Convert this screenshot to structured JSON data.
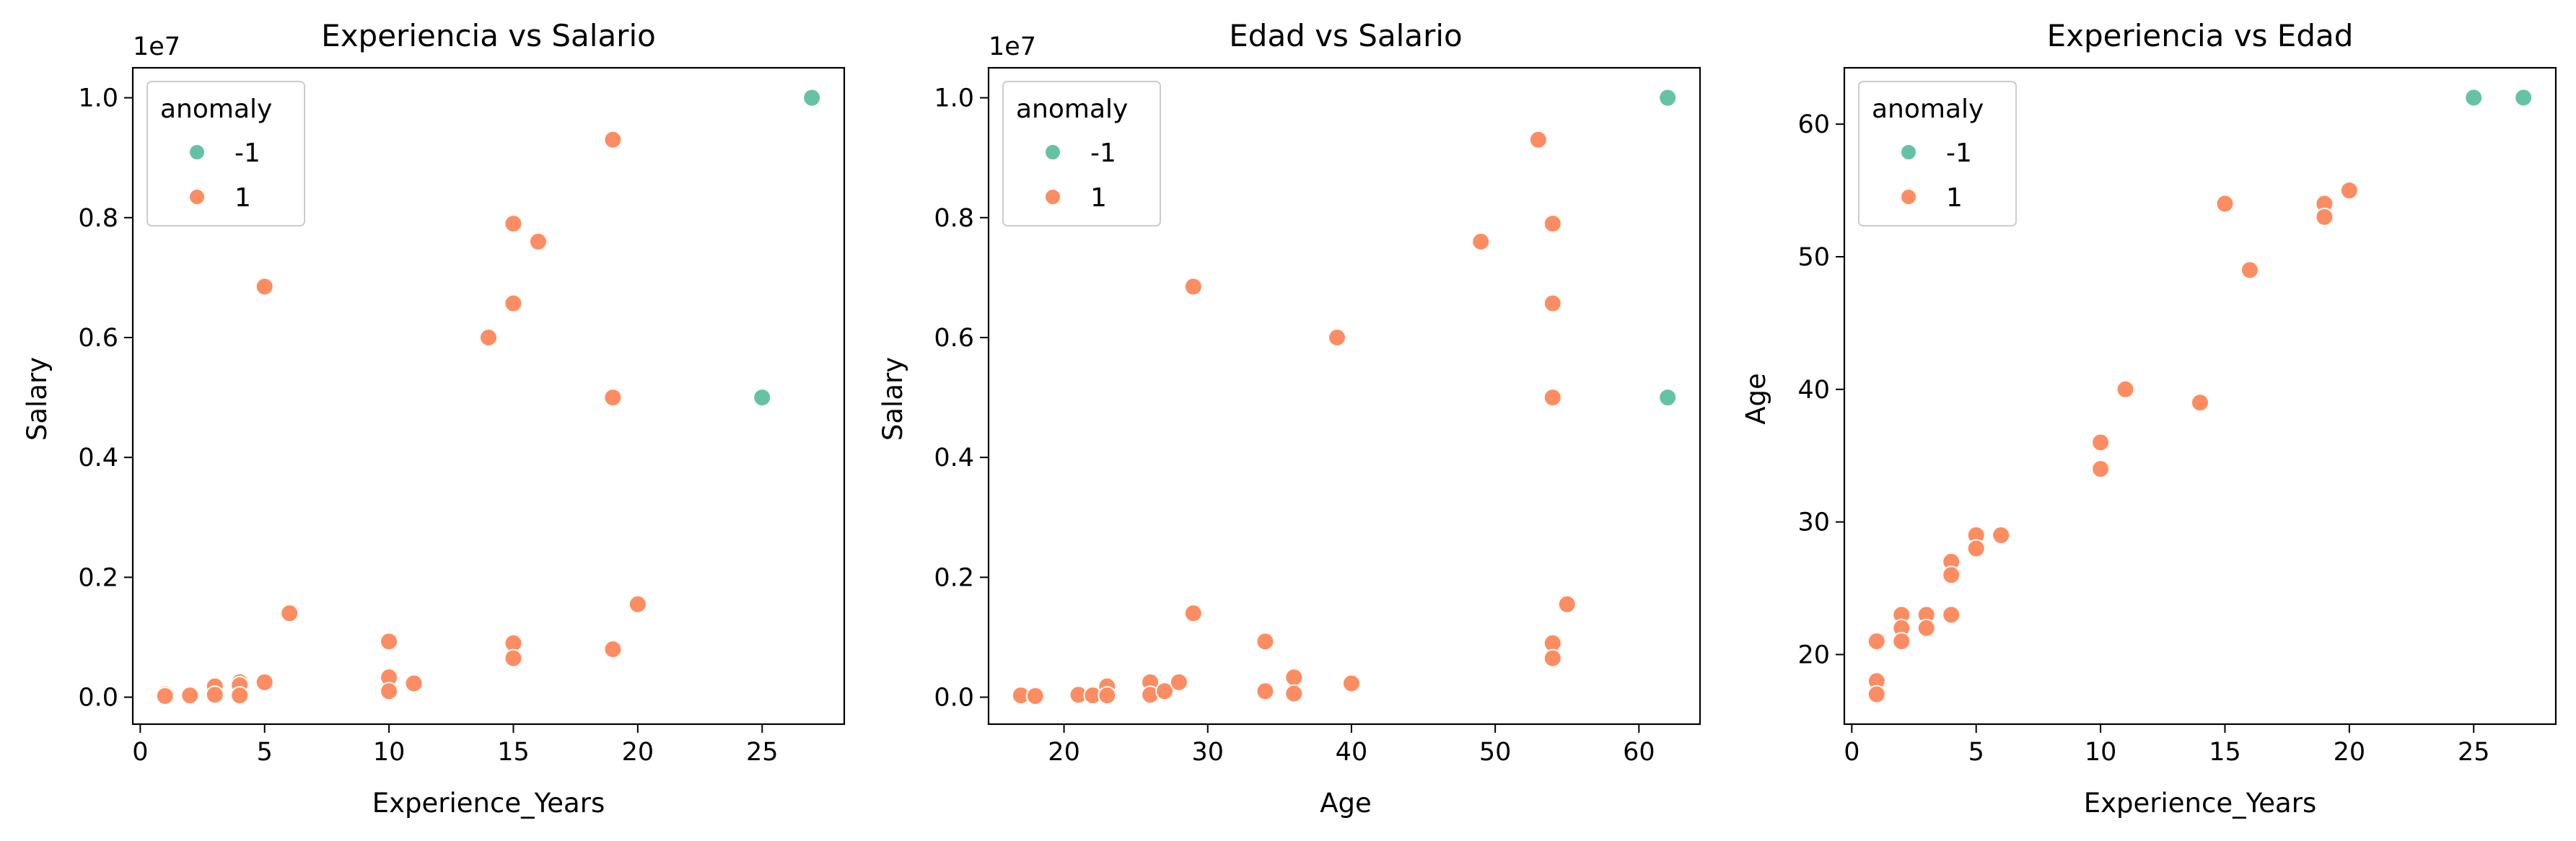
{
  "colors": {
    "anomaly_neg": "#66c2a5",
    "anomaly_pos": "#fc8d62",
    "axes": "#000000",
    "legend_frame": "#cccccc"
  },
  "chart_data": [
    {
      "type": "scatter",
      "title": "Experiencia vs Salario",
      "xlabel": "Experience_Years",
      "ylabel": "Salary",
      "y_offset_label": "1e7",
      "xlim": [
        -0.3,
        28.3
      ],
      "ylim": [
        -450000,
        10500000
      ],
      "xticks": [
        0,
        5,
        10,
        15,
        20,
        25
      ],
      "xtick_labels": [
        "0",
        "5",
        "10",
        "15",
        "20",
        "25"
      ],
      "yticks": [
        0,
        2000000,
        4000000,
        6000000,
        8000000,
        10000000
      ],
      "ytick_labels": [
        "0.0",
        "0.2",
        "0.4",
        "0.6",
        "0.8",
        "1.0"
      ],
      "legend": {
        "title": "anomaly",
        "entries": [
          "-1",
          "1"
        ],
        "position": "top-left"
      },
      "grid": false,
      "series": [
        {
          "name": "-1",
          "points": [
            [
              27,
              10000000
            ],
            [
              25,
              5000000
            ]
          ]
        },
        {
          "name": "1",
          "points": [
            [
              1,
              50000
            ],
            [
              1,
              20000
            ],
            [
              2,
              30000
            ],
            [
              3,
              180000
            ],
            [
              3,
              40000
            ],
            [
              4,
              250000
            ],
            [
              4,
              200000
            ],
            [
              4,
              30000
            ],
            [
              5,
              250000
            ],
            [
              5,
              6850000
            ],
            [
              6,
              1400000
            ],
            [
              10,
              930000
            ],
            [
              10,
              330000
            ],
            [
              10,
              100000
            ],
            [
              11,
              230000
            ],
            [
              14,
              6000000
            ],
            [
              15,
              7900000
            ],
            [
              15,
              6570000
            ],
            [
              15,
              900000
            ],
            [
              15,
              650000
            ],
            [
              16,
              7600000
            ],
            [
              19,
              9300000
            ],
            [
              19,
              5000000
            ],
            [
              19,
              800000
            ],
            [
              20,
              1550000
            ]
          ]
        }
      ]
    },
    {
      "type": "scatter",
      "title": "Edad vs Salario",
      "xlabel": "Age",
      "ylabel": "Salary",
      "y_offset_label": "1e7",
      "xlim": [
        14.75,
        64.25
      ],
      "ylim": [
        -450000,
        10500000
      ],
      "xticks": [
        20,
        30,
        40,
        50,
        60
      ],
      "xtick_labels": [
        "20",
        "30",
        "40",
        "50",
        "60"
      ],
      "yticks": [
        0,
        2000000,
        4000000,
        6000000,
        8000000,
        10000000
      ],
      "ytick_labels": [
        "0.0",
        "0.2",
        "0.4",
        "0.6",
        "0.8",
        "1.0"
      ],
      "legend": {
        "title": "anomaly",
        "entries": [
          "-1",
          "1"
        ],
        "position": "top-left"
      },
      "grid": false,
      "series": [
        {
          "name": "-1",
          "points": [
            [
              62,
              10000000
            ],
            [
              62,
              5000000
            ]
          ]
        },
        {
          "name": "1",
          "points": [
            [
              17,
              30000
            ],
            [
              18,
              20000
            ],
            [
              21,
              40000
            ],
            [
              22,
              30000
            ],
            [
              23,
              180000
            ],
            [
              23,
              30000
            ],
            [
              26,
              250000
            ],
            [
              26,
              40000
            ],
            [
              27,
              100000
            ],
            [
              28,
              250000
            ],
            [
              29,
              6850000
            ],
            [
              29,
              1400000
            ],
            [
              34,
              930000
            ],
            [
              34,
              100000
            ],
            [
              36,
              330000
            ],
            [
              36,
              60000
            ],
            [
              39,
              6000000
            ],
            [
              40,
              230000
            ],
            [
              49,
              7600000
            ],
            [
              53,
              9300000
            ],
            [
              54,
              7900000
            ],
            [
              54,
              6570000
            ],
            [
              54,
              5000000
            ],
            [
              54,
              900000
            ],
            [
              54,
              650000
            ],
            [
              55,
              1550000
            ]
          ]
        }
      ]
    },
    {
      "type": "scatter",
      "title": "Experiencia vs Edad",
      "xlabel": "Experience_Years",
      "ylabel": "Age",
      "xlim": [
        -0.3,
        28.3
      ],
      "ylim": [
        14.75,
        64.25
      ],
      "xticks": [
        0,
        5,
        10,
        15,
        20,
        25
      ],
      "xtick_labels": [
        "0",
        "5",
        "10",
        "15",
        "20",
        "25"
      ],
      "yticks": [
        20,
        30,
        40,
        50,
        60
      ],
      "ytick_labels": [
        "20",
        "30",
        "40",
        "50",
        "60"
      ],
      "legend": {
        "title": "anomaly",
        "entries": [
          "-1",
          "1"
        ],
        "position": "top-left"
      },
      "grid": false,
      "series": [
        {
          "name": "-1",
          "points": [
            [
              25,
              62
            ],
            [
              27,
              62
            ]
          ]
        },
        {
          "name": "1",
          "points": [
            [
              1,
              21
            ],
            [
              1,
              18
            ],
            [
              1,
              17
            ],
            [
              2,
              23
            ],
            [
              2,
              22
            ],
            [
              2,
              21
            ],
            [
              3,
              23
            ],
            [
              3,
              22
            ],
            [
              4,
              27
            ],
            [
              4,
              26
            ],
            [
              4,
              23
            ],
            [
              5,
              29
            ],
            [
              5,
              28
            ],
            [
              6,
              29
            ],
            [
              10,
              36
            ],
            [
              10,
              34
            ],
            [
              11,
              40
            ],
            [
              14,
              39
            ],
            [
              15,
              54
            ],
            [
              16,
              49
            ],
            [
              19,
              54
            ],
            [
              19,
              53
            ],
            [
              20,
              55
            ]
          ]
        }
      ]
    }
  ]
}
